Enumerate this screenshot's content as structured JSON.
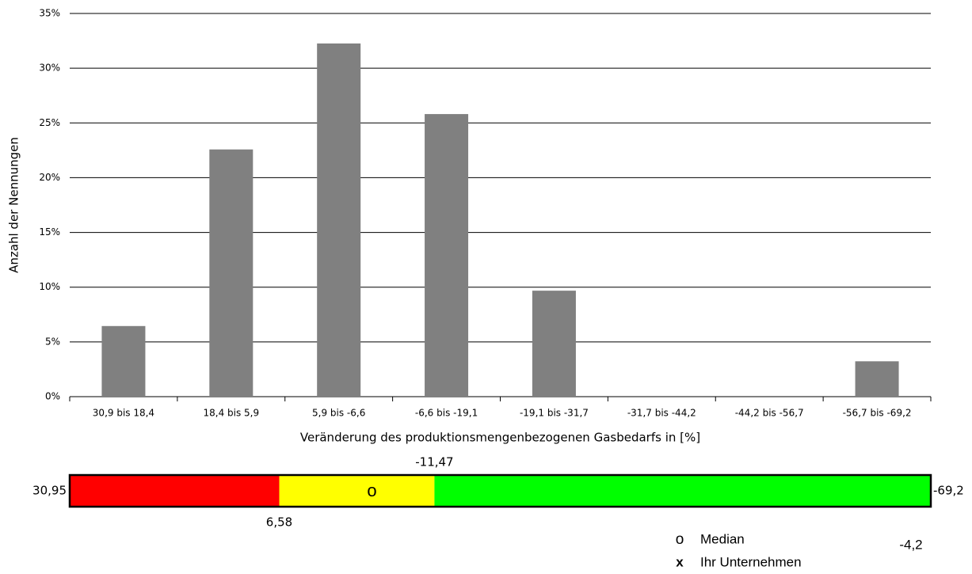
{
  "chart_data": [
    {
      "type": "bar",
      "ylabel": "Anzahl der Nennungen",
      "xlabel": "Veränderung des produktionsmengenbezogenen Gasbedarfs in [%]",
      "categories": [
        "30,9 bis 18,4",
        "18,4 bis 5,9",
        "5,9 bis -6,6",
        "-6,6 bis -19,1",
        "-19,1 bis -31,7",
        "-31,7 bis -44,2",
        "-44,2 bis -56,7",
        "-56,7 bis -69,2"
      ],
      "values": [
        6.45,
        22.58,
        32.26,
        25.81,
        9.68,
        0,
        0,
        3.23
      ],
      "color": "#808080",
      "ylim": [
        0,
        35
      ],
      "yticks": [
        {
          "value": 0,
          "label": "0%"
        },
        {
          "value": 5,
          "label": "5%"
        },
        {
          "value": 10,
          "label": "10%"
        },
        {
          "value": 15,
          "label": "15%"
        },
        {
          "value": 20,
          "label": "20%"
        },
        {
          "value": 25,
          "label": "25%"
        },
        {
          "value": 30,
          "label": "30%"
        },
        {
          "value": 35,
          "label": "35%"
        }
      ],
      "grid": true
    },
    {
      "type": "range",
      "xlim": [
        30.95,
        -69.2
      ],
      "xticks": [
        {
          "value": 30.95,
          "label": "30,95"
        },
        {
          "value": 6.58,
          "label": "6,58"
        },
        {
          "value": -11.47,
          "label": "-11,47"
        },
        {
          "value": -69.2,
          "label": "-69,2"
        }
      ],
      "colors": [
        "#ff0000",
        "#ffff00",
        "#00ff00"
      ],
      "median": {
        "value": -4.2,
        "label": "-4,2",
        "symbol": "o",
        "name": "Median"
      },
      "company": {
        "symbol": "x",
        "name": "Ihr Unternehmen"
      }
    }
  ]
}
